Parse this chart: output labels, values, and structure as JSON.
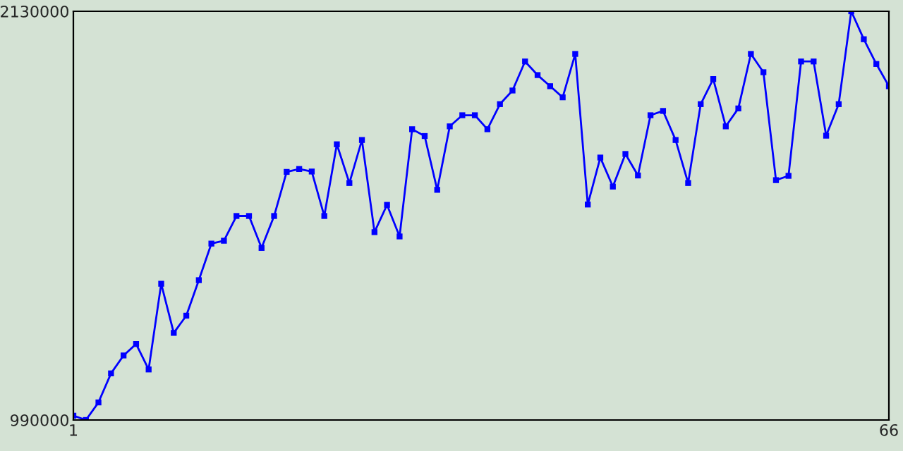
{
  "chart_data": {
    "type": "line",
    "x": [
      1,
      2,
      3,
      4,
      5,
      6,
      7,
      8,
      9,
      10,
      11,
      12,
      13,
      14,
      15,
      16,
      17,
      18,
      19,
      20,
      21,
      22,
      23,
      24,
      25,
      26,
      27,
      28,
      29,
      30,
      31,
      32,
      33,
      34,
      35,
      36,
      37,
      38,
      39,
      40,
      41,
      42,
      43,
      44,
      45,
      46,
      47,
      48,
      49,
      50,
      51,
      52,
      53,
      54,
      55,
      56,
      57,
      58,
      59,
      60,
      61,
      62,
      63,
      64,
      65,
      66
    ],
    "series": [
      {
        "color": "#0000ff",
        "values": [
          1002000,
          990000,
          1039000,
          1120000,
          1170000,
          1202000,
          1131000,
          1370000,
          1233000,
          1281000,
          1380000,
          1482000,
          1490000,
          1559000,
          1559000,
          1470000,
          1559000,
          1682000,
          1690000,
          1683000,
          1559000,
          1759000,
          1651000,
          1771000,
          1514000,
          1590000,
          1502000,
          1801000,
          1782000,
          1632000,
          1809000,
          1840000,
          1840000,
          1801000,
          1871000,
          1909000,
          1990000,
          1952000,
          1921000,
          1890000,
          2011000,
          1591000,
          1722000,
          1641000,
          1732000,
          1672000,
          1840000,
          1852000,
          1771000,
          1651000,
          1871000,
          1941000,
          1809000,
          1859000,
          2011000,
          1960000,
          1659000,
          1671000,
          1990000,
          1990000,
          1783000,
          1871000,
          2130000,
          2052000,
          1983000,
          1921000
        ]
      }
    ],
    "xlim": [
      1,
      66
    ],
    "xticks": [
      1,
      66
    ],
    "ylim": [
      990000,
      2130000
    ],
    "yticks": [
      990000,
      2130000
    ],
    "marker": "square",
    "line_style": "solid"
  }
}
